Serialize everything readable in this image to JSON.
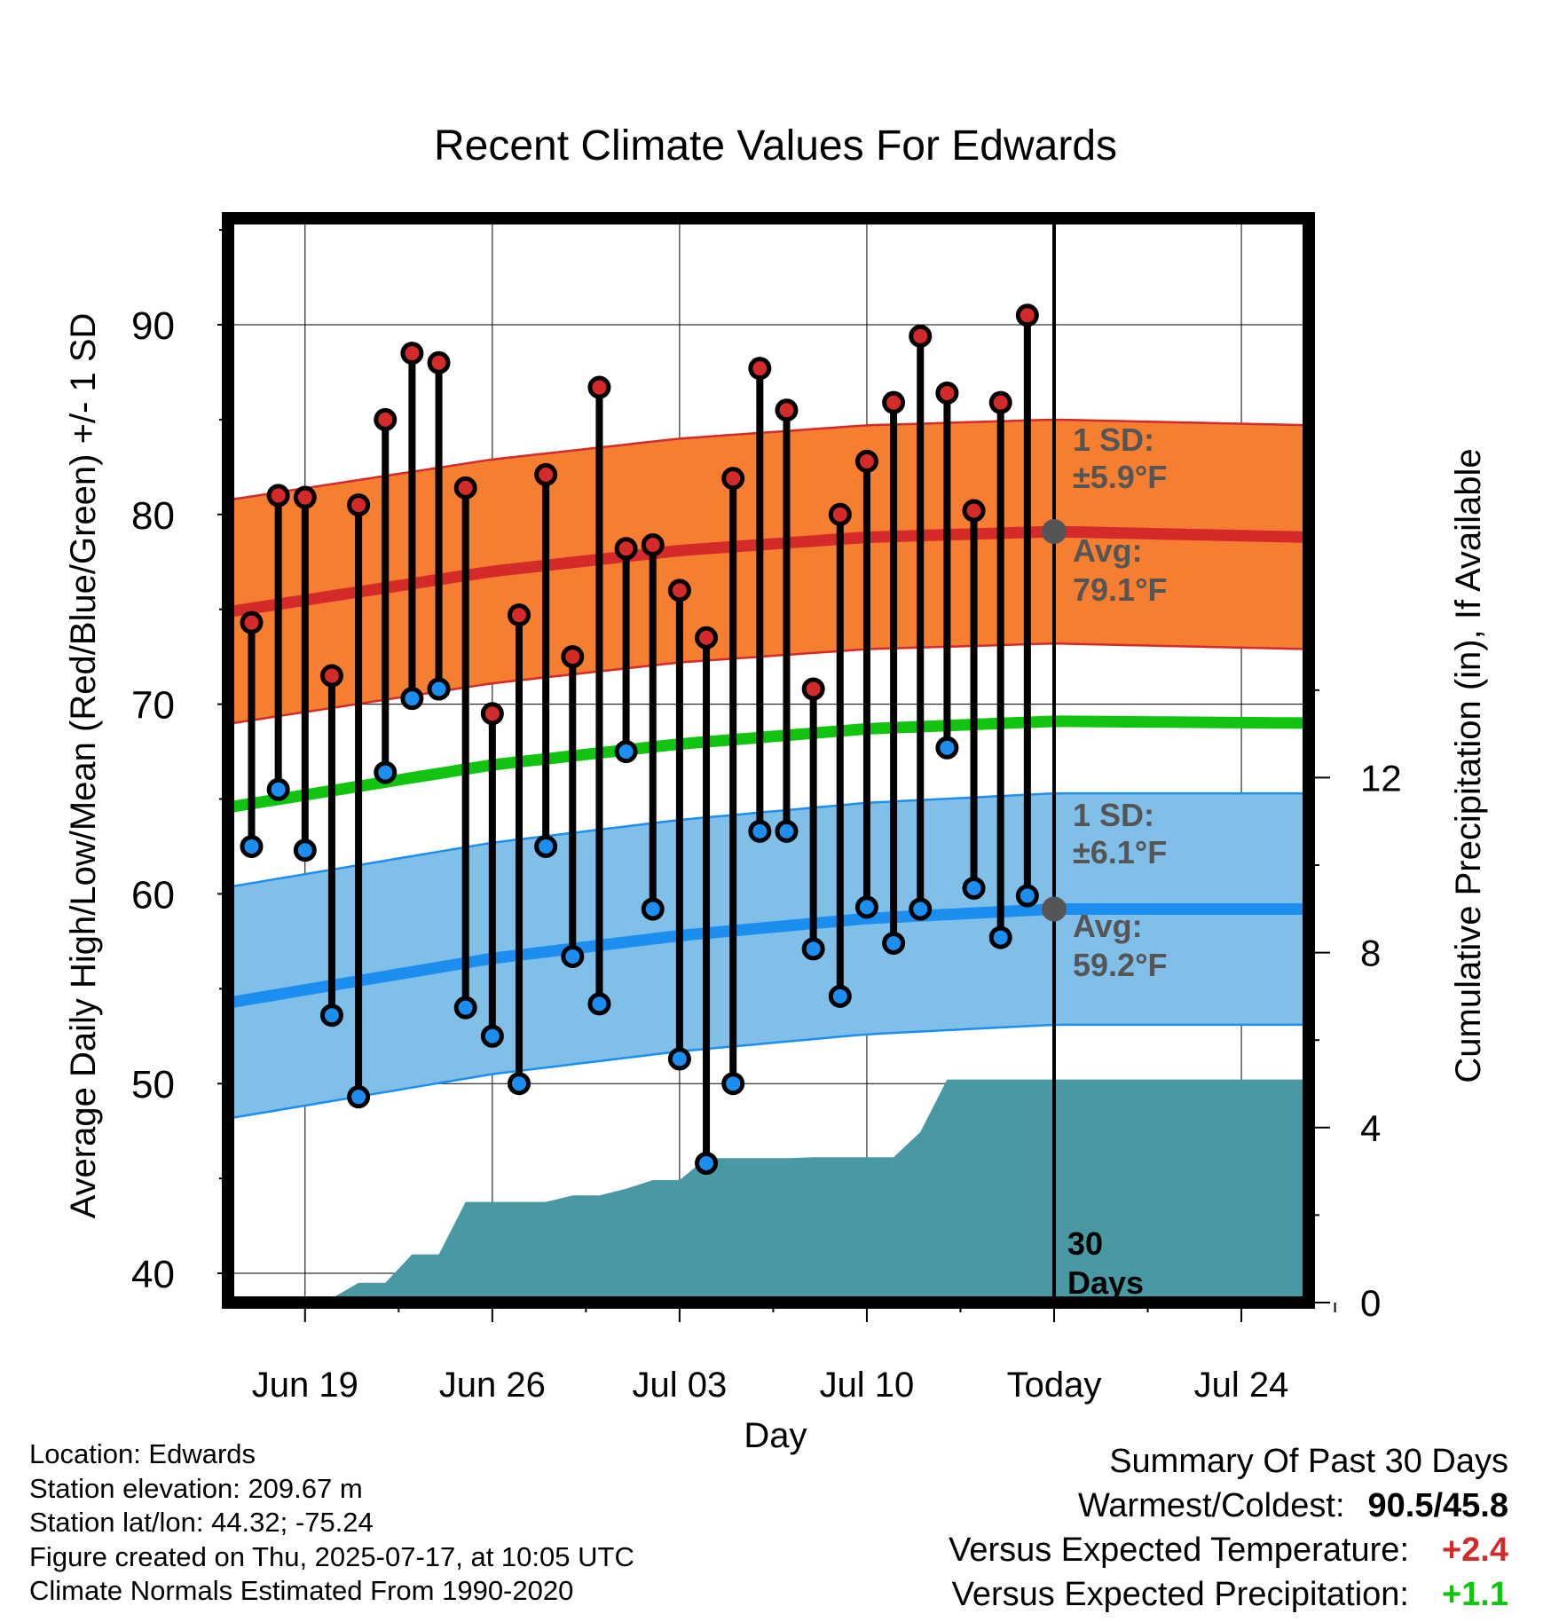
{
  "chart_data": {
    "type": "line",
    "title": "Recent Climate Values For Edwards",
    "xlabel": "Day",
    "ylabel": "Average Daily High/Low/Mean (Red/Blue/Green) +/- 1 SD",
    "y2label": "Cumulative Precipitation (in), If Available",
    "x_tick_labels": [
      "Jun 19",
      "Jun 26",
      "Jul 03",
      "Jul 10",
      "Today",
      "Jul 24"
    ],
    "y_ticks": [
      40,
      50,
      60,
      70,
      80,
      90
    ],
    "y_range": [
      38.2,
      96
    ],
    "y2_ticks": [
      0,
      4,
      8,
      12
    ],
    "x_day_range": [
      -30.7,
      9.6
    ],
    "highs": [
      74.3,
      81.0,
      80.9,
      71.5,
      80.5,
      85.0,
      88.5,
      88.0,
      81.4,
      69.5,
      74.7,
      82.1,
      72.5,
      86.7,
      78.2,
      78.4,
      76.0,
      73.5,
      81.9,
      87.7,
      85.5,
      70.8,
      80.0,
      82.8,
      85.9,
      89.4,
      86.4,
      80.2,
      85.9,
      90.5
    ],
    "lows": [
      62.5,
      65.5,
      62.3,
      53.6,
      49.3,
      66.4,
      70.3,
      70.8,
      54.0,
      52.5,
      50.0,
      62.5,
      56.7,
      54.2,
      67.5,
      59.2,
      51.3,
      45.8,
      50.0,
      63.3,
      63.3,
      57.1,
      54.6,
      59.3,
      57.4,
      59.2,
      67.7,
      60.3,
      57.7,
      59.9
    ],
    "normal_high": {
      "days": [
        -30.7,
        -21,
        -14,
        -7,
        0,
        9.6
      ],
      "values": [
        74.9,
        77.0,
        78.1,
        78.8,
        79.1,
        78.8
      ]
    },
    "normal_low": {
      "days": [
        -30.7,
        -21,
        -14,
        -7,
        0,
        9.6
      ],
      "values": [
        54.3,
        56.6,
        57.8,
        58.7,
        59.2,
        59.2
      ]
    },
    "normal_mean": {
      "days": [
        -30.7,
        -21,
        -14,
        -7,
        0,
        9.6
      ],
      "values": [
        64.6,
        66.8,
        67.9,
        68.7,
        69.1,
        69.0
      ]
    },
    "high_sd": 5.9,
    "low_sd": 6.1,
    "precip_cumulative": [
      [
        -27.5,
        0.0
      ],
      [
        -27.0,
        0.1
      ],
      [
        -26.0,
        0.45
      ],
      [
        -25.0,
        0.45
      ],
      [
        -24.0,
        1.1
      ],
      [
        -23.0,
        1.1
      ],
      [
        -22.0,
        2.3
      ],
      [
        -21.0,
        2.3
      ],
      [
        -20.0,
        2.3
      ],
      [
        -19.0,
        2.3
      ],
      [
        -18.0,
        2.45
      ],
      [
        -17.0,
        2.45
      ],
      [
        -16.0,
        2.6
      ],
      [
        -15.0,
        2.8
      ],
      [
        -14.0,
        2.8
      ],
      [
        -13.0,
        3.3
      ],
      [
        -12.0,
        3.3
      ],
      [
        -11.0,
        3.3
      ],
      [
        -10.0,
        3.3
      ],
      [
        -9.0,
        3.32
      ],
      [
        -8.0,
        3.32
      ],
      [
        -7.0,
        3.32
      ],
      [
        -6.0,
        3.32
      ],
      [
        -5.0,
        3.9
      ],
      [
        -4.0,
        5.1
      ],
      [
        0.0,
        5.1
      ],
      [
        9.6,
        5.1
      ]
    ],
    "annotations": {
      "high_sd_label": "1 SD:",
      "high_sd_value": "±5.9°F",
      "high_avg_label": "Avg:",
      "high_avg_value": "79.1°F",
      "low_sd_label": "1 SD:",
      "low_sd_value": "±6.1°F",
      "low_avg_label": "Avg:",
      "low_avg_value": "59.2°F",
      "window_number": "30",
      "window_unit": "Days"
    },
    "colors": {
      "high": "#d42a29",
      "high_band": "#f57e30",
      "low": "#1b8ef0",
      "low_band": "#80bfe8",
      "mean": "#10c410",
      "precip": "#4899a3",
      "marker_high": "#d42a29",
      "marker_low": "#1b8ef0",
      "avg_dot": "#555555"
    }
  },
  "info": {
    "location": "Location: Edwards",
    "elevation": "Station elevation: 209.67 m",
    "latlon": "Station lat/lon: 44.32; -75.24",
    "created": "Figure created on Thu, 2025-07-17, at 10:05 UTC",
    "normals": "Climate Normals Estimated From 1990-2020"
  },
  "summary": {
    "title": "Summary Of Past 30 Days",
    "warmest_label": "Warmest/Coldest:",
    "warmest_value": "90.5/45.8",
    "temp_label": "Versus Expected Temperature:",
    "temp_value": "+2.4",
    "temp_color": "#d42a29",
    "precip_label": "Versus Expected Precipitation:",
    "precip_value": "+1.1",
    "precip_color": "#10c410"
  }
}
